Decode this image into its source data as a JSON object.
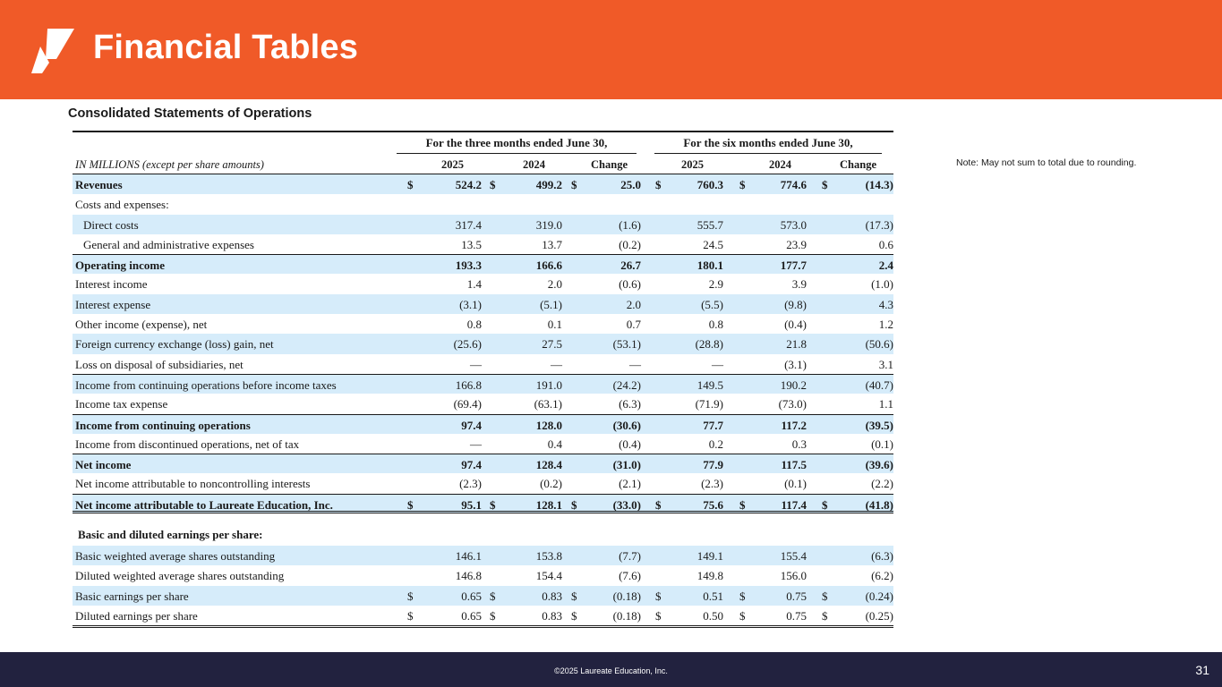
{
  "header": {
    "title": "Financial Tables",
    "brand_color": "#f05a28"
  },
  "section_title": "Consolidated Statements of Operations",
  "note": "Note:  May not sum to total due to rounding.",
  "table": {
    "group_three": "For the three months ended June 30,",
    "group_six": "For the six months ended June 30,",
    "units": "IN MILLIONS  (except per share amounts)",
    "columns": [
      "2025",
      "2024",
      "Change",
      "2025",
      "2024",
      "Change"
    ],
    "rows": [
      {
        "label": "Revenues",
        "values": [
          "524.2",
          "499.2",
          "25.0",
          "760.3",
          "774.6",
          "(14.3)"
        ],
        "dollar": true
      },
      {
        "label": "Costs and expenses:",
        "values": [
          "",
          "",
          "",
          "",
          "",
          ""
        ]
      },
      {
        "label": "Direct costs",
        "values": [
          "317.4",
          "319.0",
          "(1.6)",
          "555.7",
          "573.0",
          "(17.3)"
        ]
      },
      {
        "label": "General and administrative expenses",
        "values": [
          "13.5",
          "13.7",
          "(0.2)",
          "24.5",
          "23.9",
          "0.6"
        ]
      },
      {
        "label": "Operating income",
        "values": [
          "193.3",
          "166.6",
          "26.7",
          "180.1",
          "177.7",
          "2.4"
        ]
      },
      {
        "label": "Interest income",
        "values": [
          "1.4",
          "2.0",
          "(0.6)",
          "2.9",
          "3.9",
          "(1.0)"
        ]
      },
      {
        "label": "Interest expense",
        "values": [
          "(3.1)",
          "(5.1)",
          "2.0",
          "(5.5)",
          "(9.8)",
          "4.3"
        ]
      },
      {
        "label": "Other income (expense), net",
        "values": [
          "0.8",
          "0.1",
          "0.7",
          "0.8",
          "(0.4)",
          "1.2"
        ]
      },
      {
        "label": "Foreign currency exchange (loss) gain, net",
        "values": [
          "(25.6)",
          "27.5",
          "(53.1)",
          "(28.8)",
          "21.8",
          "(50.6)"
        ]
      },
      {
        "label": "Loss on disposal of subsidiaries, net",
        "values": [
          "—",
          "—",
          "—",
          "—",
          "(3.1)",
          "3.1"
        ]
      },
      {
        "label": "Income from continuing operations before income taxes",
        "values": [
          "166.8",
          "191.0",
          "(24.2)",
          "149.5",
          "190.2",
          "(40.7)"
        ]
      },
      {
        "label": "Income tax expense",
        "values": [
          "(69.4)",
          "(63.1)",
          "(6.3)",
          "(71.9)",
          "(73.0)",
          "1.1"
        ]
      },
      {
        "label": "Income from continuing operations",
        "values": [
          "97.4",
          "128.0",
          "(30.6)",
          "77.7",
          "117.2",
          "(39.5)"
        ]
      },
      {
        "label": "Income from discontinued operations, net of tax",
        "values": [
          "—",
          "0.4",
          "(0.4)",
          "0.2",
          "0.3",
          "(0.1)"
        ]
      },
      {
        "label": "Net income",
        "values": [
          "97.4",
          "128.4",
          "(31.0)",
          "77.9",
          "117.5",
          "(39.6)"
        ]
      },
      {
        "label": "Net income attributable to noncontrolling interests",
        "values": [
          "(2.3)",
          "(0.2)",
          "(2.1)",
          "(2.3)",
          "(0.1)",
          "(2.2)"
        ]
      },
      {
        "label": "Net income attributable to Laureate Education, Inc.",
        "values": [
          "95.1",
          "128.1",
          "(33.0)",
          "75.6",
          "117.4",
          "(41.8)"
        ],
        "dollar": true
      }
    ],
    "eps_heading": "Basic and diluted earnings per share:",
    "eps_rows": [
      {
        "label": "Basic weighted average shares outstanding",
        "values": [
          "146.1",
          "153.8",
          "(7.7)",
          "149.1",
          "155.4",
          "(6.3)"
        ]
      },
      {
        "label": "Diluted weighted average shares outstanding",
        "values": [
          "146.8",
          "154.4",
          "(7.6)",
          "149.8",
          "156.0",
          "(6.2)"
        ]
      },
      {
        "label": "Basic earnings per share",
        "values": [
          "0.65",
          "0.83",
          "(0.18)",
          "0.51",
          "0.75",
          "(0.24)"
        ],
        "dollar": true
      },
      {
        "label": "Diluted earnings per share",
        "values": [
          "0.65",
          "0.83",
          "(0.18)",
          "0.50",
          "0.75",
          "(0.25)"
        ],
        "dollar": true
      }
    ],
    "currency_symbol": "$"
  },
  "footer": {
    "copyright": "©2025 Laureate Education, Inc.",
    "page_number": "31"
  }
}
